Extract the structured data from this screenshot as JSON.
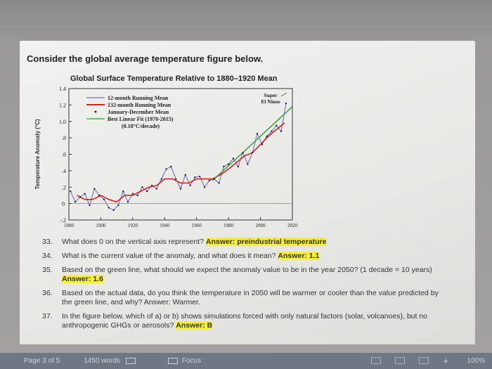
{
  "document": {
    "intro": "Consider the global average temperature figure below.",
    "questions": [
      {
        "num": "33.",
        "text": "What does 0 on the vertical axis represent? ",
        "answer_label": "Answer: preindustrial temperature",
        "highlight": true
      },
      {
        "num": "34.",
        "text": "What is the current value of the anomaly, and what does it mean? ",
        "answer_label": "Answer: 1.1",
        "highlight": true
      },
      {
        "num": "35.",
        "text": "Based on the green line, what should we expect the anomaly value to be in the year 2050? (1 decade = 10 years) ",
        "answer_label": "Answer: 1.6",
        "highlight": true
      },
      {
        "num": "36.",
        "text": "Based on the actual data, do you think the temperature in 2050 will be warmer or cooler than the value predicted by the green line, and why? Answer: Warmer.",
        "answer_label": "",
        "highlight": false
      },
      {
        "num": "37.",
        "text": "In the figure below, which of a) or b) shows simulations forced with only natural factors (solar, volcanoes), but no anthropogenic GHGs or aerosols? ",
        "answer_label": "Answer: B",
        "highlight": true
      }
    ]
  },
  "status_bar": {
    "page": "Page 3 of 5",
    "words": "1450 words",
    "focus": "Focus",
    "zoom": "100%"
  },
  "chart_data": {
    "type": "line",
    "title": "Global Surface Temperature Relative to 1880–1920 Mean",
    "xlabel": "",
    "ylabel": "Temperature Anomaly (°C)",
    "xlim": [
      1880,
      2020
    ],
    "ylim": [
      -0.2,
      1.4
    ],
    "x_ticks": [
      "1880",
      "1900",
      "1920",
      "1940",
      "1960",
      "1980",
      "2000",
      "2020"
    ],
    "y_ticks": [
      "-.2",
      "0.",
      ".2",
      ".4",
      ".6",
      ".8",
      "1.0",
      "1.2",
      "1.4"
    ],
    "annotation": "Super El Ninos",
    "legend": {
      "placement": "top-left",
      "entries": [
        "12-month Running Mean",
        "132-month Running Mean",
        "January-December Mean",
        "Best Linear Fit (1970-2015)",
        "(0.18°C/decade)"
      ]
    },
    "colors": {
      "running12": "#6f6fc8",
      "running132": "#d62020",
      "annual": "#111111",
      "fit": "#2f9a2f"
    },
    "series": [
      {
        "name": "132-month Running Mean",
        "x": [
          1885,
          1890,
          1895,
          1900,
          1905,
          1910,
          1915,
          1920,
          1925,
          1930,
          1935,
          1940,
          1945,
          1950,
          1955,
          1960,
          1965,
          1970,
          1975,
          1980,
          1985,
          1990,
          1995,
          2000,
          2005,
          2010,
          2015
        ],
        "values": [
          0.1,
          0.05,
          0.05,
          0.1,
          0.05,
          0.02,
          0.1,
          0.1,
          0.15,
          0.2,
          0.22,
          0.3,
          0.3,
          0.25,
          0.25,
          0.3,
          0.3,
          0.3,
          0.35,
          0.42,
          0.5,
          0.58,
          0.62,
          0.72,
          0.82,
          0.9,
          0.98
        ]
      },
      {
        "name": "12-month Running Mean",
        "x": [
          1881,
          1884,
          1887,
          1890,
          1893,
          1896,
          1899,
          1902,
          1905,
          1908,
          1911,
          1914,
          1917,
          1920,
          1923,
          1926,
          1929,
          1932,
          1935,
          1938,
          1941,
          1944,
          1947,
          1950,
          1953,
          1956,
          1959,
          1962,
          1965,
          1968,
          1971,
          1974,
          1977,
          1980,
          1983,
          1986,
          1989,
          1992,
          1995,
          1998,
          2001,
          2004,
          2007,
          2010,
          2013,
          2016
        ],
        "values": [
          0.15,
          0.02,
          0.08,
          0.12,
          -0.02,
          0.18,
          0.1,
          0.05,
          -0.05,
          -0.08,
          -0.02,
          0.15,
          0.02,
          0.12,
          0.1,
          0.2,
          0.15,
          0.22,
          0.18,
          0.3,
          0.42,
          0.45,
          0.3,
          0.18,
          0.35,
          0.22,
          0.32,
          0.33,
          0.2,
          0.28,
          0.3,
          0.25,
          0.45,
          0.48,
          0.55,
          0.45,
          0.62,
          0.48,
          0.62,
          0.85,
          0.72,
          0.82,
          0.88,
          0.95,
          0.88,
          1.22
        ]
      },
      {
        "name": "Best Linear Fit (1970-2015)",
        "x": [
          1970,
          2020
        ],
        "values": [
          0.28,
          1.18
        ]
      }
    ]
  }
}
